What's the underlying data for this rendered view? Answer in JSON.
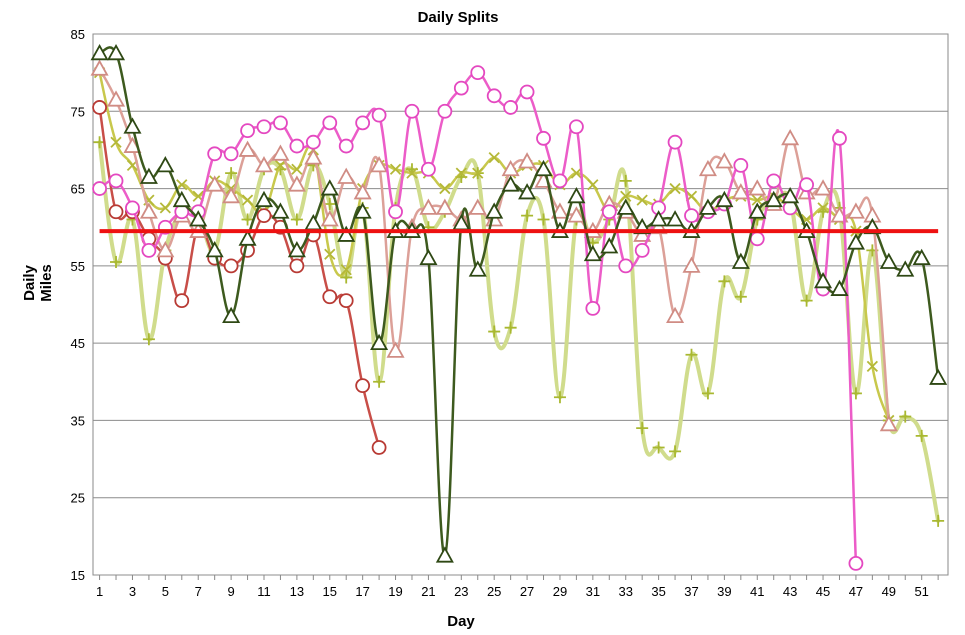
{
  "chart_data": {
    "type": "line",
    "title": "Daily Splits",
    "xlabel": "Day",
    "ylabel": [
      "Daily",
      "Miles"
    ],
    "xlim": [
      0.6,
      52.6
    ],
    "ylim": [
      15,
      85
    ],
    "yticks": [
      85,
      75,
      65,
      55,
      45,
      35,
      25,
      15
    ],
    "xticks": [
      1,
      3,
      5,
      7,
      9,
      11,
      13,
      15,
      17,
      19,
      21,
      23,
      25,
      27,
      29,
      31,
      33,
      35,
      37,
      39,
      41,
      43,
      45,
      47,
      49,
      51
    ],
    "grid": "horizontal",
    "reference_line": {
      "y": 59.5,
      "color": "#ee1111"
    },
    "series": [
      {
        "marker": "plus",
        "color": "#d0dc8c",
        "marker_color": "#a9b830",
        "width": 4,
        "x": [
          1,
          2,
          3,
          4,
          5,
          6,
          7,
          8,
          9,
          10,
          11,
          12,
          13,
          14,
          15,
          16,
          17,
          18,
          19,
          20,
          21,
          22,
          23,
          24,
          25,
          26,
          27,
          28,
          29,
          30,
          31,
          32,
          33,
          34,
          35,
          36,
          37,
          38,
          39,
          40,
          41,
          42,
          43,
          44,
          45,
          46,
          47,
          48,
          49,
          50,
          51,
          52
        ],
        "y": [
          71,
          55.5,
          61,
          45.5,
          57,
          62,
          61.5,
          57,
          67,
          61,
          67.5,
          67.5,
          61,
          68,
          63,
          53.5,
          62.5,
          40,
          62.5,
          67.5,
          60,
          62,
          66.5,
          67,
          46.5,
          47,
          61.5,
          61,
          38,
          61,
          58,
          61,
          66,
          34,
          31.5,
          31,
          43.5,
          38.5,
          53,
          51,
          61,
          63,
          63.5,
          50.5,
          62,
          62.5,
          38.5,
          57,
          35,
          35.5,
          33,
          22
        ]
      },
      {
        "marker": "cross",
        "color": "#c8c84c",
        "marker_color": "#b4b838",
        "width": 2.5,
        "x": [
          1,
          2,
          3,
          4,
          5,
          6,
          7,
          8,
          9,
          10,
          11,
          12,
          13,
          14,
          15,
          16,
          17,
          18,
          19,
          20,
          21,
          22,
          23,
          24,
          25,
          26,
          27,
          28,
          29,
          30,
          31,
          32,
          33,
          34,
          35,
          36,
          37,
          38,
          39,
          40,
          41,
          42,
          43,
          44,
          45,
          46,
          47,
          48,
          49
        ],
        "y": [
          80,
          71,
          68,
          63.5,
          62.5,
          65.5,
          64,
          66,
          65,
          63.5,
          62,
          68,
          67.5,
          70,
          56.5,
          54.5,
          65,
          68,
          67.5,
          67,
          67,
          65,
          67,
          67,
          69,
          67,
          68,
          68,
          65.5,
          67,
          65.5,
          62,
          64,
          63.5,
          63,
          65,
          64,
          62,
          63.5,
          64,
          63.5,
          64,
          62.5,
          61,
          62.5,
          61,
          59.5,
          42,
          35
        ]
      },
      {
        "marker": "circle",
        "color": "#c84e48",
        "marker_color": "#b83a34",
        "width": 2.5,
        "x": [
          1,
          2,
          3,
          4,
          5,
          6,
          7,
          8,
          9,
          10,
          11,
          12,
          13,
          14,
          15,
          16,
          17,
          18
        ],
        "y": [
          75.5,
          62,
          62,
          58.5,
          56,
          50.5,
          60,
          56,
          55,
          57,
          61.5,
          60,
          55,
          59,
          51,
          50.5,
          39.5,
          31.5
        ]
      },
      {
        "marker": "triangle",
        "color": "#dca098",
        "marker_color": "#d08c84",
        "width": 2.5,
        "x": [
          1,
          2,
          3,
          4,
          5,
          6,
          7,
          8,
          9,
          10,
          11,
          12,
          13,
          14,
          15,
          16,
          17,
          18,
          19,
          20,
          21,
          22,
          23,
          24,
          25,
          26,
          27,
          28,
          29,
          30,
          31,
          32,
          33,
          34,
          35,
          36,
          37,
          38,
          39,
          40,
          41,
          42,
          43,
          44,
          45,
          46,
          47,
          48,
          49
        ],
        "y": [
          80.5,
          76.5,
          70.5,
          62,
          57,
          61.5,
          59.5,
          65.5,
          64,
          70,
          68,
          69.5,
          65.5,
          69,
          61,
          66.5,
          64.5,
          68,
          44,
          60,
          62.5,
          62.5,
          61,
          62.5,
          61,
          67.5,
          68.5,
          66,
          62,
          61.5,
          59.5,
          63,
          62,
          59,
          60,
          48.5,
          55,
          67.5,
          68.5,
          64.5,
          65,
          63,
          71.5,
          64.5,
          65,
          61.5,
          62,
          61.5,
          34.5
        ]
      },
      {
        "marker": "circle",
        "color": "#ec5cc8",
        "marker_color": "#e448c0",
        "width": 2.5,
        "x": [
          1,
          2,
          3,
          4,
          5,
          6,
          7,
          8,
          9,
          10,
          11,
          12,
          13,
          14,
          15,
          16,
          17,
          18,
          19,
          20,
          21,
          22,
          23,
          24,
          25,
          26,
          27,
          28,
          29,
          30,
          31,
          32,
          33,
          34,
          35,
          36,
          37,
          38,
          39,
          40,
          41,
          42,
          43,
          44,
          45,
          46,
          47
        ],
        "y": [
          65,
          66,
          62.5,
          57,
          60,
          62,
          62,
          69.5,
          69.5,
          72.5,
          73,
          73.5,
          70.5,
          71,
          73.5,
          70.5,
          73.5,
          74.5,
          62,
          75,
          67.5,
          75,
          78,
          80,
          77,
          75.5,
          77.5,
          71.5,
          66,
          73,
          49.5,
          62,
          55,
          57,
          62.5,
          71,
          61.5,
          62,
          63,
          68,
          58.5,
          66,
          62.5,
          65.5,
          52,
          71.5,
          16.5
        ]
      },
      {
        "marker": "triangle",
        "color": "#3d5a1e",
        "marker_color": "#2e4814",
        "width": 2.5,
        "x": [
          1,
          2,
          3,
          4,
          5,
          6,
          7,
          8,
          9,
          10,
          11,
          12,
          13,
          14,
          15,
          16,
          17,
          18,
          19,
          20,
          21,
          22,
          23,
          24,
          25,
          26,
          27,
          28,
          29,
          30,
          31,
          32,
          33,
          34,
          35,
          36,
          37,
          38,
          39,
          40,
          41,
          42,
          43,
          44,
          45,
          46,
          47,
          48,
          49,
          50,
          51,
          52
        ],
        "y": [
          82.5,
          82.5,
          73,
          66.5,
          68,
          63.5,
          61,
          57,
          48.5,
          58.5,
          63.5,
          62,
          57,
          60.5,
          65,
          59,
          62,
          45,
          59.5,
          59.5,
          56,
          17.5,
          60.5,
          54.5,
          62,
          65.5,
          64.5,
          67.5,
          59.5,
          64,
          56.5,
          57.5,
          62.5,
          60,
          61,
          61,
          59.5,
          62.5,
          63.5,
          55.5,
          62,
          63.5,
          64,
          59.5,
          53,
          52,
          58,
          60,
          55.5,
          54.5,
          56,
          40.5
        ]
      }
    ]
  }
}
